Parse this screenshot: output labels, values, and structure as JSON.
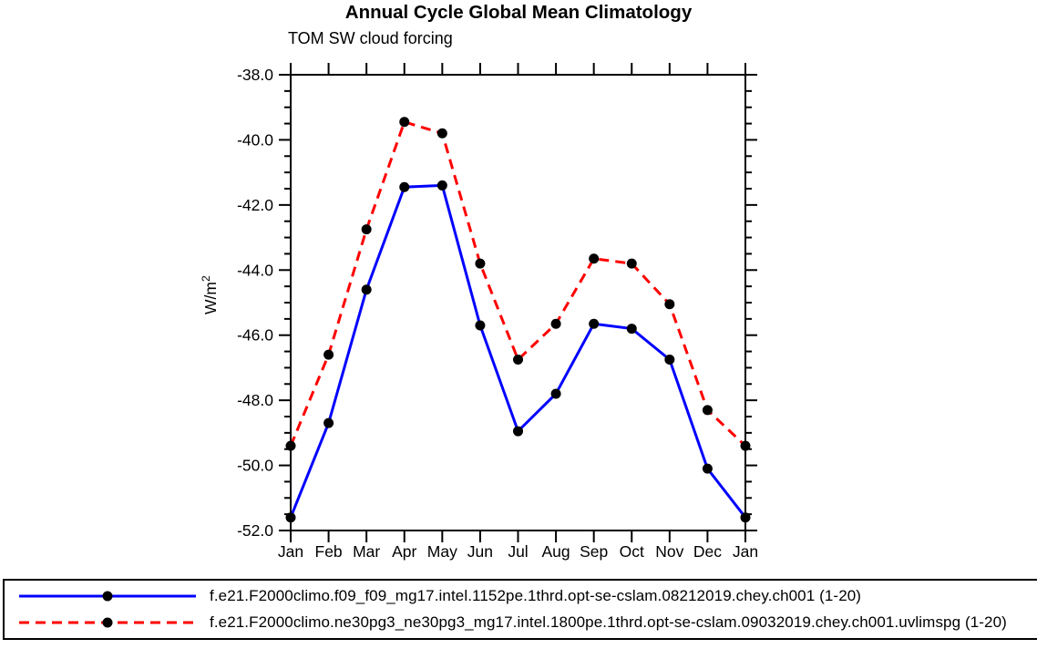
{
  "chart_data": {
    "type": "line",
    "title": "Annual Cycle Global Mean Climatology",
    "subtitle": "TOM SW cloud forcing",
    "ylabel": {
      "base": "W/m",
      "exponent": "2"
    },
    "xlabel": "",
    "categories": [
      "Jan",
      "Feb",
      "Mar",
      "Apr",
      "May",
      "Jun",
      "Jul",
      "Aug",
      "Sep",
      "Oct",
      "Nov",
      "Dec",
      "Jan"
    ],
    "ylim": [
      -52.0,
      -38.0
    ],
    "ytick_major_interval": 2.0,
    "ytick_minor_interval": 0.5,
    "ytick_labels": [
      "-38.0",
      "-40.0",
      "-42.0",
      "-44.0",
      "-46.0",
      "-48.0",
      "-50.0",
      "-52.0"
    ],
    "grid": "off",
    "legend_position": "bottom",
    "axis_color": "#000000",
    "marker": {
      "shape": "circle",
      "color": "#000000"
    },
    "series": [
      {
        "name": "f.e21.F2000climo.f09_f09_mg17.intel.1152pe.1thrd.opt-se-cslam.08212019.chey.ch001 (1-20)",
        "color": "#0000ff",
        "line_style": "solid",
        "values": [
          -51.6,
          -48.7,
          -44.6,
          -41.45,
          -41.4,
          -45.7,
          -48.95,
          -47.8,
          -45.65,
          -45.8,
          -46.75,
          -50.1,
          -51.6
        ]
      },
      {
        "name": "f.e21.F2000climo.ne30pg3_ne30pg3_mg17.intel.1800pe.1thrd.opt-se-cslam.09032019.chey.ch001.uvlimspg (1-20)",
        "color": "#ff0000",
        "line_style": "dashed",
        "values": [
          -49.4,
          -46.6,
          -42.75,
          -39.45,
          -39.8,
          -43.8,
          -46.75,
          -45.65,
          -43.65,
          -43.8,
          -45.05,
          -48.3,
          -49.4
        ]
      }
    ]
  }
}
